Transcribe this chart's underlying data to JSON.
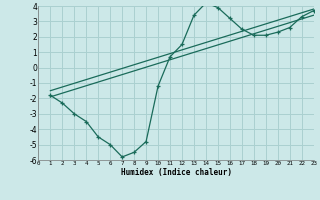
{
  "xlabel": "Humidex (Indice chaleur)",
  "bg_color": "#cce8e8",
  "grid_color": "#aad0d0",
  "line_color": "#1a6b5a",
  "x_min": 0,
  "x_max": 23,
  "y_min": -6,
  "y_max": 4,
  "yticks": [
    -6,
    -5,
    -4,
    -3,
    -2,
    -1,
    0,
    1,
    2,
    3,
    4
  ],
  "xticks": [
    0,
    1,
    2,
    3,
    4,
    5,
    6,
    7,
    8,
    9,
    10,
    11,
    12,
    13,
    14,
    15,
    16,
    17,
    18,
    19,
    20,
    21,
    22,
    23
  ],
  "curve1_x": [
    1,
    2,
    3,
    4,
    5,
    6,
    7,
    8,
    9,
    10,
    11,
    12,
    13,
    14,
    15,
    16,
    17,
    18,
    19,
    20,
    21,
    22,
    23
  ],
  "curve1_y": [
    -1.8,
    -2.3,
    -3.0,
    -3.5,
    -4.5,
    -5.0,
    -5.8,
    -5.5,
    -4.8,
    -1.2,
    0.7,
    1.5,
    3.4,
    4.2,
    3.9,
    3.2,
    2.5,
    2.1,
    2.1,
    2.3,
    2.6,
    3.3,
    3.7
  ],
  "curve2_x": [
    1,
    23
  ],
  "curve2_y": [
    -1.5,
    3.8
  ],
  "curve3_x": [
    1,
    23
  ],
  "curve3_y": [
    -1.9,
    3.4
  ]
}
